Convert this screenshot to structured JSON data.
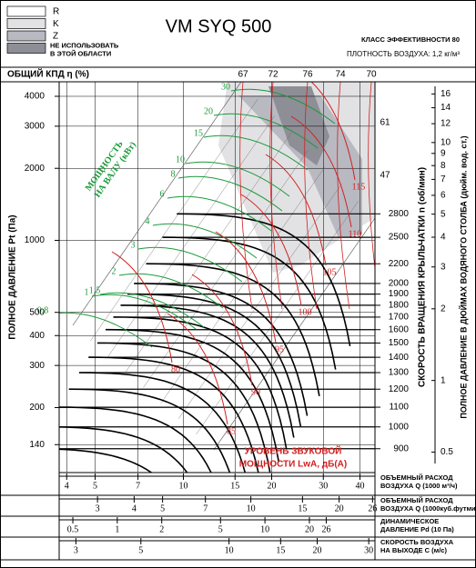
{
  "title": "VM SYQ 500",
  "legend": [
    {
      "label": "R",
      "color": "#ffffff"
    },
    {
      "label": "K",
      "color": "#e2e2e4"
    },
    {
      "label": "Z",
      "color": "#b9b9c2"
    },
    {
      "label": [
        "НЕ ИСПОЛЬЗОВАТЬ",
        "В ЭТОЙ ОБЛАСТИ"
      ],
      "color": "#8e8e96"
    }
  ],
  "efficiency_class": "КЛАСС ЭФФЕКТИВНОСТИ 80",
  "air_density": "ПЛОТНОСТЬ ВОЗДУХА: 1,2 кг/м³",
  "chart_data": {
    "type": "fan-curve",
    "efficiency_label": "ОБЩИЙ КПД η (%)",
    "efficiency_values": [
      67,
      72,
      76,
      74,
      70
    ],
    "efficiency_side": [
      61,
      47
    ],
    "ylabel": "ПОЛНОЕ ДАВЛЕНИЕ Pt (Па)",
    "log_scale": true,
    "grid": true,
    "ylim": [
      107,
      4600
    ],
    "yticks": [
      140,
      200,
      300,
      400,
      500,
      1000,
      2000,
      3000,
      4000
    ],
    "y2label": "СКОРОСТЬ ВРАЩЕНИЯ КРЫЛЬЧАТКИ n (об/мин)",
    "y2lim": [
      802,
      5300
    ],
    "y2ticks": [
      900,
      1000,
      1100,
      1200,
      1300,
      1400,
      1500,
      1600,
      1700,
      1800,
      1900,
      2000,
      2200,
      2500,
      2800
    ],
    "y3label": "ПОЛНОЕ ДАВЛЕНИЕ В ДЮЙМАХ ВОДЯНОГО СТОЛБА (дюйм. вод. ст.)",
    "y3lim": [
      0.41,
      18
    ],
    "y3ticks": [
      0.5,
      1,
      2,
      3,
      4,
      5,
      6,
      7,
      8,
      9,
      10,
      12,
      14,
      16
    ],
    "bottom_axes": [
      {
        "label": [
          "ОБЪЕМНЫЙ РАСХОД",
          "ВОЗДУХА Q (1000 м³/ч)"
        ],
        "lim": [
          3.77,
          45
        ],
        "ticks": [
          4,
          5,
          7,
          10,
          15,
          20,
          30,
          40
        ]
      },
      {
        "label": [
          "ОБЪЕМНЫЙ РАСХОД",
          "ВОЗДУХА Q (1000куб.футмин)"
        ],
        "lim": [
          2.22,
          26.5
        ],
        "ticks": [
          3,
          4,
          5,
          7,
          10,
          15,
          20,
          26
        ]
      },
      {
        "label": [
          "ДИНАМИЧЕСКОЕ",
          "ДАВЛЕНИЕ Pd (10 Па)"
        ],
        "lim": [
          0.404,
          55.6
        ],
        "ticks": [
          0.5,
          1,
          2,
          5,
          10,
          20,
          26
        ]
      },
      {
        "label": [
          "СКОРОСТЬ ВОЗДУХА",
          "НА ВЫХОДЕ C (м/с)"
        ],
        "lim": [
          2.63,
          31.5
        ],
        "ticks": [
          3,
          5,
          10,
          15,
          20,
          30
        ]
      }
    ],
    "power_label": [
      "МОЩНОСТЬ",
      "НА ВАЛУ (кВт)"
    ],
    "power_values": [
      0.8,
      1,
      1.5,
      2,
      3,
      4,
      6,
      8,
      10,
      15,
      20,
      30
    ],
    "sound_label": [
      "УРОВЕНЬ ЗВУКОВОЙ",
      "МОЩНОСТИ LwA, дБ(A)"
    ],
    "sound_values": [
      80,
      85,
      90,
      95,
      100,
      105,
      110,
      115
    ]
  }
}
